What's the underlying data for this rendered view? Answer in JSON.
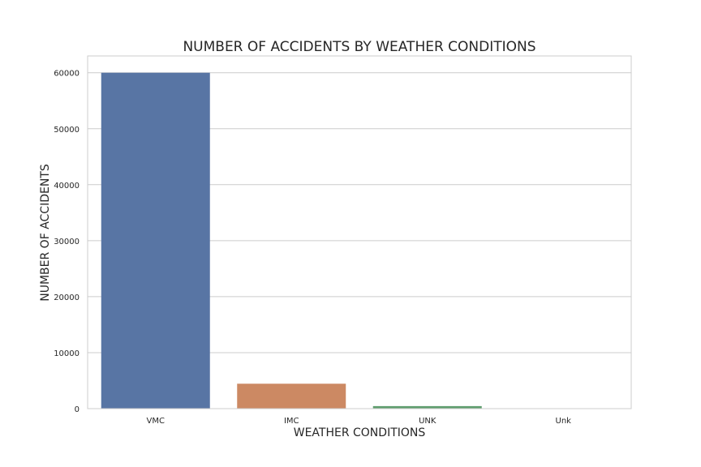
{
  "chart_data": {
    "type": "bar",
    "title": "NUMBER OF ACCIDENTS BY WEATHER CONDITIONS",
    "xlabel": "WEATHER CONDITIONS",
    "ylabel": "NUMBER OF ACCIDENTS",
    "categories": [
      "VMC",
      "IMC",
      "UNK",
      "Unk"
    ],
    "values": [
      60000,
      4450,
      450,
      10
    ],
    "ylim": [
      0,
      63000
    ],
    "yticks": [
      0,
      10000,
      20000,
      30000,
      40000,
      50000,
      60000
    ],
    "grid": true,
    "colors": [
      "#5875a4",
      "#cc8963",
      "#5f9e6e",
      "#b55d60"
    ],
    "background": "#ffffff",
    "grid_color": "#cccccc"
  }
}
